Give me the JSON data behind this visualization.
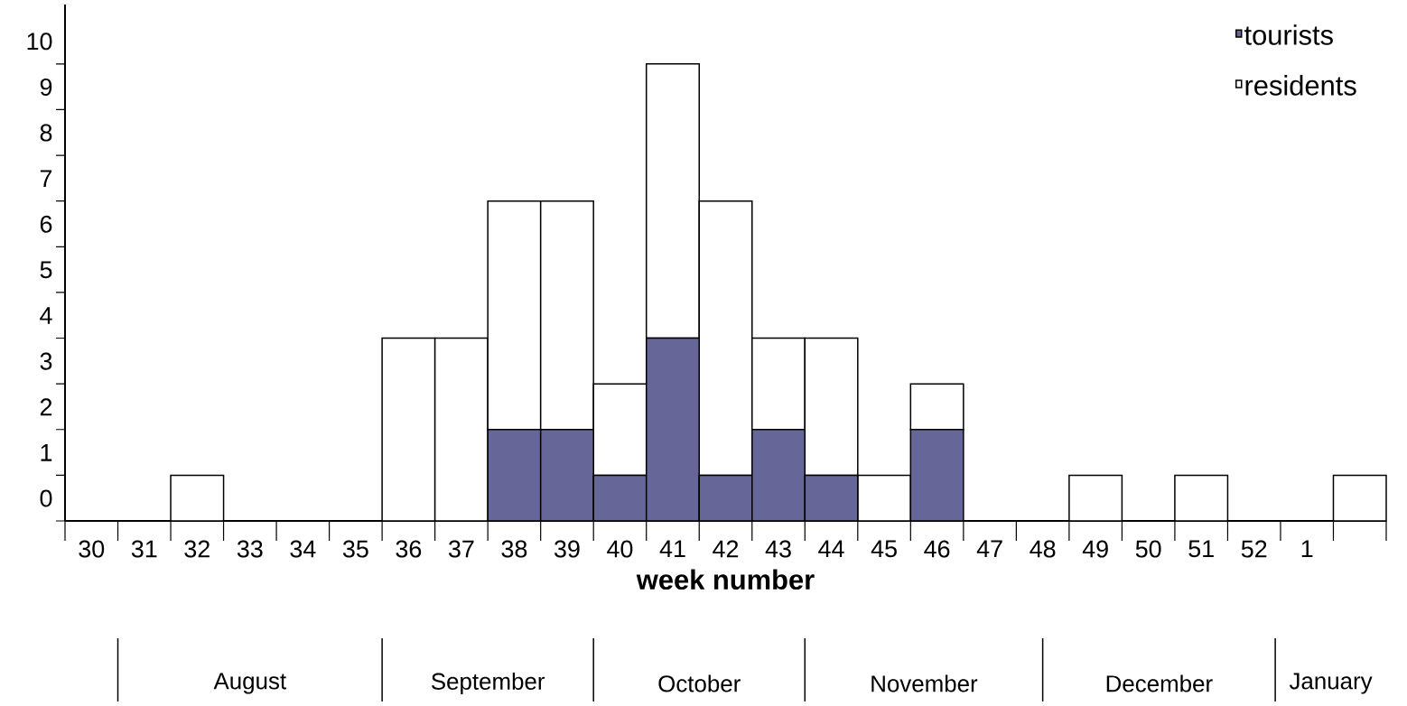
{
  "chart_data": {
    "type": "bar",
    "stacked": true,
    "xlabel": "week number",
    "categories": [
      "30",
      "31",
      "32",
      "33",
      "34",
      "35",
      "36",
      "37",
      "38",
      "39",
      "40",
      "41",
      "42",
      "43",
      "44",
      "45",
      "46",
      "47",
      "48",
      "49",
      "50",
      "51",
      "52",
      "1",
      null
    ],
    "series": [
      {
        "name": "tourists",
        "color": "#666699",
        "values": [
          0,
          0,
          0,
          0,
          0,
          0,
          0,
          0,
          2,
          2,
          1,
          4,
          1,
          2,
          1,
          0,
          2,
          0,
          0,
          0,
          0,
          0,
          0,
          0,
          0
        ]
      },
      {
        "name": "residents",
        "color": "#ffffff",
        "values": [
          0,
          0,
          1,
          0,
          0,
          0,
          4,
          4,
          5,
          5,
          2,
          6,
          6,
          2,
          3,
          1,
          1,
          0,
          0,
          1,
          0,
          1,
          0,
          0,
          1
        ]
      }
    ],
    "ylim": [
      0,
      11.3
    ],
    "yticks": [
      0,
      1,
      2,
      3,
      4,
      5,
      6,
      7,
      8,
      9,
      10
    ],
    "legend": "top right",
    "grid": false,
    "annotations": [
      "August",
      "September",
      "October",
      "November",
      "December",
      "January"
    ]
  }
}
